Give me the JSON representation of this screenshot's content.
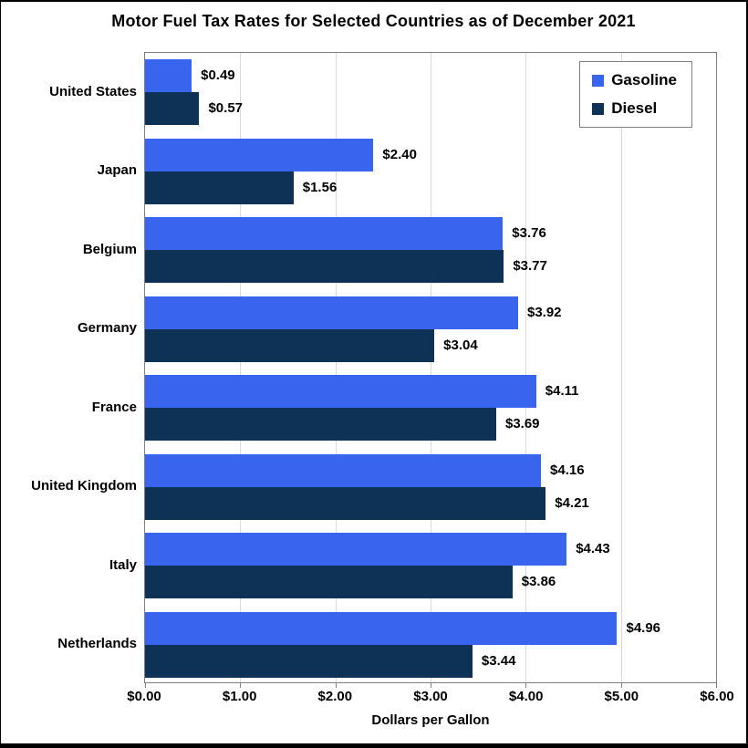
{
  "chart_data": {
    "type": "bar",
    "orientation": "horizontal",
    "title": "Motor Fuel Tax Rates for Selected Countries as of December 2021",
    "xlabel": "Dollars per Gallon",
    "xlim": [
      0,
      6
    ],
    "xtick_labels": [
      "$0.00",
      "$1.00",
      "$2.00",
      "$3.00",
      "$4.00",
      "$5.00",
      "$6.00"
    ],
    "grid": "vertical",
    "legend_position": "top-right",
    "categories": [
      "United States",
      "Japan",
      "Belgium",
      "Germany",
      "France",
      "United Kingdom",
      "Italy",
      "Netherlands"
    ],
    "series": [
      {
        "name": "Gasoline",
        "color": "#3864EE",
        "values": [
          0.49,
          2.4,
          3.76,
          3.92,
          4.11,
          4.16,
          4.43,
          4.96
        ],
        "labels": [
          "$0.49",
          "$2.40",
          "$3.76",
          "$3.92",
          "$4.11",
          "$4.16",
          "$4.43",
          "$4.96"
        ]
      },
      {
        "name": "Diesel",
        "color": "#0E3255",
        "values": [
          0.57,
          1.56,
          3.77,
          3.04,
          3.69,
          4.21,
          3.86,
          3.44
        ],
        "labels": [
          "$0.57",
          "$1.56",
          "$3.77",
          "$3.04",
          "$3.69",
          "$4.21",
          "$3.86",
          "$3.44"
        ]
      }
    ],
    "colors": {
      "gridline": "#D9D9D9",
      "axis_border": "#808080",
      "text": "#000000",
      "background": "#FFFFFF"
    }
  }
}
